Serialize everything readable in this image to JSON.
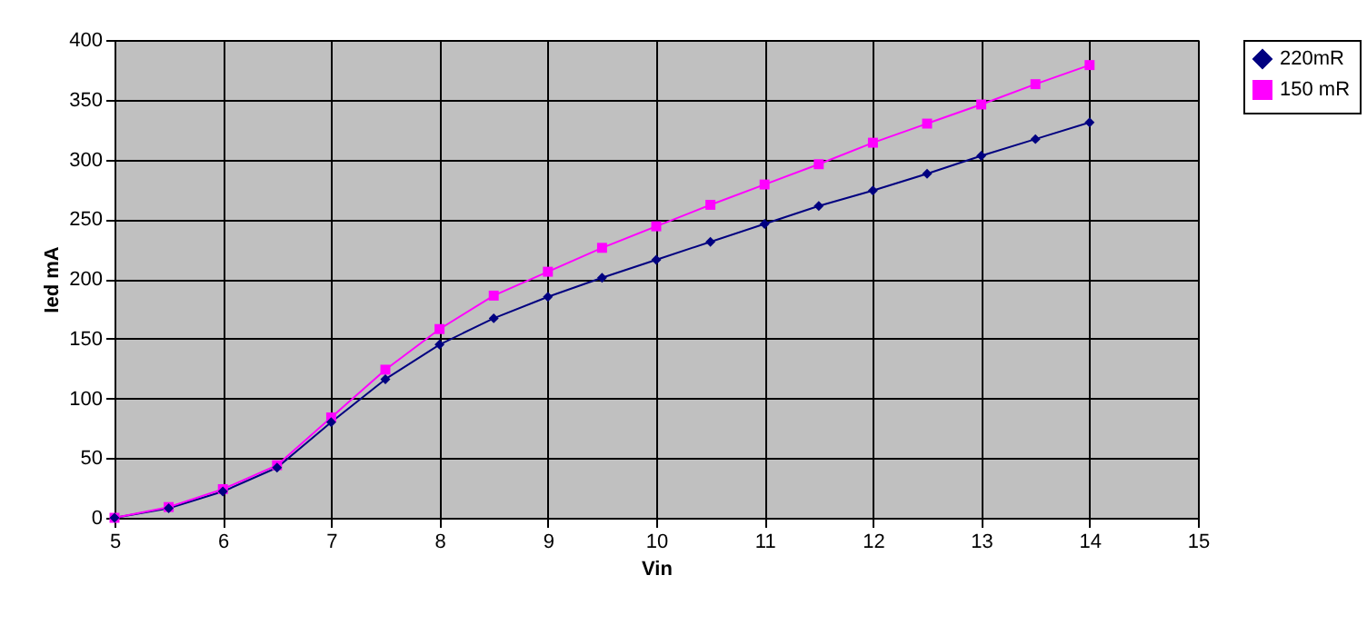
{
  "chart_data": {
    "type": "line",
    "xlabel": "Vin",
    "ylabel": "Ied mA",
    "x": [
      5,
      5.5,
      6,
      6.5,
      7,
      7.5,
      8,
      8.5,
      9,
      9.5,
      10,
      10.5,
      11,
      11.5,
      12,
      12.5,
      13,
      13.5,
      14
    ],
    "series": [
      {
        "name": "220mR",
        "color": "#000080",
        "marker": "diamond",
        "values": [
          0,
          8,
          22,
          42,
          80,
          116,
          145,
          167,
          185,
          201,
          216,
          231,
          246,
          261,
          274,
          288,
          303,
          317,
          331
        ]
      },
      {
        "name": "150 mR",
        "color": "#ff00ff",
        "marker": "square",
        "values": [
          0,
          9,
          24,
          44,
          84,
          124,
          158,
          186,
          206,
          226,
          244,
          262,
          279,
          296,
          314,
          330,
          346,
          363,
          379
        ]
      }
    ],
    "xlim": [
      5,
      15
    ],
    "xticks": [
      5,
      6,
      7,
      8,
      9,
      10,
      11,
      12,
      13,
      14,
      15
    ],
    "ylim": [
      0,
      400
    ],
    "yticks": [
      0,
      50,
      100,
      150,
      200,
      250,
      300,
      350,
      400
    ],
    "grid": true,
    "legend": "right",
    "line_style": "solid"
  }
}
